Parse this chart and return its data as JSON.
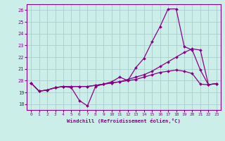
{
  "xlabel": "Windchill (Refroidissement éolien,°C)",
  "background_color": "#cceee8",
  "grid_color": "#aacccc",
  "line_color": "#880088",
  "xlim": [
    -0.5,
    23.5
  ],
  "ylim": [
    17.5,
    26.5
  ],
  "xticks": [
    0,
    1,
    2,
    3,
    4,
    5,
    6,
    7,
    8,
    9,
    10,
    11,
    12,
    13,
    14,
    15,
    16,
    17,
    18,
    19,
    20,
    21,
    22,
    23
  ],
  "yticks": [
    18,
    19,
    20,
    21,
    22,
    23,
    24,
    25,
    26
  ],
  "curve1_x": [
    0,
    1,
    2,
    3,
    4,
    5,
    6,
    7,
    8,
    9,
    10,
    11,
    12,
    13,
    14,
    15,
    16,
    17,
    18,
    19,
    20,
    21,
    22,
    23
  ],
  "curve1_y": [
    19.8,
    19.1,
    19.2,
    19.4,
    19.5,
    19.4,
    18.3,
    17.85,
    19.5,
    19.7,
    19.9,
    20.3,
    20.0,
    21.1,
    21.9,
    23.3,
    24.6,
    26.1,
    26.1,
    22.9,
    22.6,
    20.9,
    19.65,
    19.75
  ],
  "curve2_x": [
    0,
    1,
    2,
    3,
    4,
    5,
    6,
    7,
    8,
    9,
    10,
    11,
    12,
    13,
    14,
    15,
    16,
    17,
    18,
    19,
    20,
    21,
    22,
    23
  ],
  "curve2_y": [
    19.8,
    19.1,
    19.2,
    19.4,
    19.5,
    19.5,
    19.5,
    19.5,
    19.6,
    19.7,
    19.8,
    19.9,
    20.1,
    20.3,
    20.5,
    20.8,
    21.2,
    21.6,
    22.0,
    22.4,
    22.7,
    22.6,
    19.65,
    19.75
  ],
  "curve3_x": [
    0,
    1,
    2,
    3,
    4,
    5,
    6,
    7,
    8,
    9,
    10,
    11,
    12,
    13,
    14,
    15,
    16,
    17,
    18,
    19,
    20,
    21,
    22,
    23
  ],
  "curve3_y": [
    19.8,
    19.1,
    19.2,
    19.4,
    19.5,
    19.5,
    19.5,
    19.5,
    19.6,
    19.7,
    19.8,
    19.9,
    20.0,
    20.1,
    20.3,
    20.5,
    20.7,
    20.8,
    20.9,
    20.8,
    20.6,
    19.7,
    19.65,
    19.75
  ]
}
